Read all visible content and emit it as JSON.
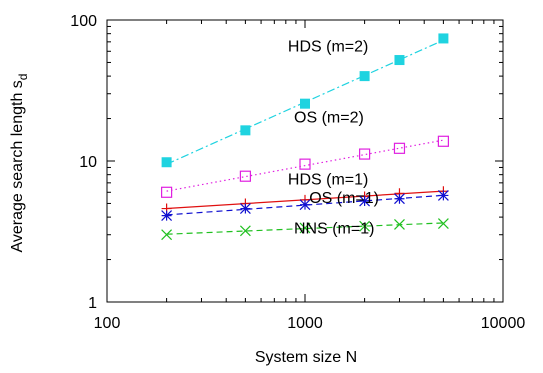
{
  "chart_data": {
    "type": "line",
    "xlabel": "System size N",
    "ylabel": "Average search length s",
    "ylabel_subscript": "d",
    "x_scale": "log",
    "y_scale": "log",
    "xlim": [
      100,
      10000
    ],
    "ylim": [
      1,
      100
    ],
    "x_ticks": [
      "100",
      "1000",
      "10000"
    ],
    "y_ticks": [
      "1",
      "10",
      "100"
    ],
    "grid": false,
    "x": [
      200,
      500,
      1000,
      2000,
      3000,
      5000
    ],
    "series": [
      {
        "name": "HDS (m=2)",
        "marker": "filled-square",
        "line": "dash-dot",
        "color": "#1fd3e0",
        "values": [
          9.8,
          16.5,
          25.5,
          40,
          52,
          74
        ]
      },
      {
        "name": "OS (m=2)",
        "marker": "open-square",
        "line": "dotted",
        "color": "#e020e0",
        "values": [
          6.0,
          7.8,
          9.5,
          11.2,
          12.3,
          13.8
        ]
      },
      {
        "name": "HDS (m=1)",
        "marker": "plus",
        "line": "solid",
        "color": "#e01010",
        "values": [
          4.6,
          5.0,
          5.3,
          5.6,
          5.9,
          6.1
        ]
      },
      {
        "name": "OS (m=1)",
        "marker": "star",
        "line": "dashed",
        "color": "#1010d0",
        "values": [
          4.1,
          4.6,
          4.9,
          5.2,
          5.4,
          5.7
        ]
      },
      {
        "name": "NNS (m=1)",
        "marker": "x",
        "line": "dashed",
        "color": "#20c020",
        "values": [
          3.0,
          3.2,
          3.35,
          3.45,
          3.55,
          3.6
        ]
      }
    ]
  }
}
